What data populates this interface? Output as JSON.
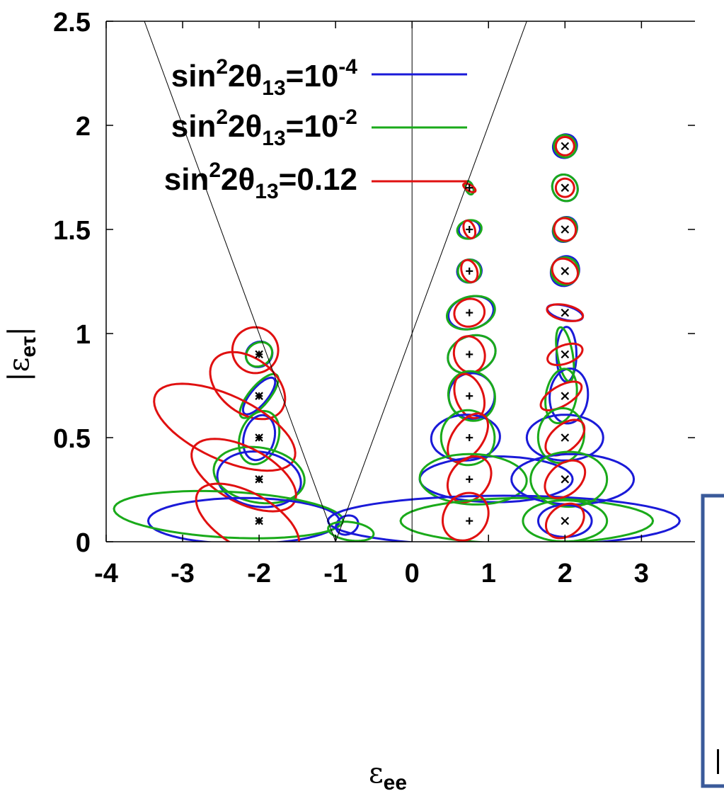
{
  "chart_data": {
    "type": "scatter",
    "xlabel": "ε",
    "xlabel_sub": "ee",
    "ylabel": "|ε",
    "ylabel_sub": "eτ",
    "ylabel_close": "|",
    "xlim": [
      -4,
      3.7
    ],
    "ylim": [
      0,
      2.5
    ],
    "x_ticks": [
      -4,
      -3,
      -2,
      -1,
      0,
      1,
      2,
      3
    ],
    "x_tick_labels": [
      "-4",
      "-3",
      "-2",
      "-1",
      "0",
      "1",
      "2",
      "3"
    ],
    "y_ticks": [
      0,
      0.5,
      1,
      1.5,
      2,
      2.5
    ],
    "y_tick_labels": [
      "0",
      "0.5",
      "1",
      "1.5",
      "2",
      "2.5"
    ],
    "legend_position": "top-left",
    "series": [
      {
        "name": "sin²2θ13=10⁻⁴",
        "legend_main": "sin",
        "legend_sup1": "2",
        "legend_mid": "2θ",
        "legend_sub": "13",
        "legend_eq": "=10",
        "legend_sup2": "-4",
        "color": "#1a1ad8"
      },
      {
        "name": "sin²2θ13=10⁻²",
        "legend_main": "sin",
        "legend_sup1": "2",
        "legend_mid": "2θ",
        "legend_sub": "13",
        "legend_eq": "=10",
        "legend_sup2": "-2",
        "color": "#1aaa1a"
      },
      {
        "name": "sin²2θ13=0.12",
        "legend_main": "sin",
        "legend_sup1": "2",
        "legend_mid": "2θ",
        "legend_sub": "13",
        "legend_eq": "=0.12",
        "legend_sup2": "",
        "color": "#e01010"
      }
    ],
    "boundary_lines": [
      {
        "x": [
          -3.5,
          -1
        ],
        "y": [
          2.5,
          0
        ]
      },
      {
        "x": [
          -1,
          1.5
        ],
        "y": [
          0,
          2.5
        ]
      },
      {
        "x": [
          0,
          0
        ],
        "y": [
          0,
          2.5
        ]
      }
    ],
    "true_points": [
      {
        "x": -2,
        "y": 0.9,
        "marker": "*"
      },
      {
        "x": -2,
        "y": 0.7,
        "marker": "*"
      },
      {
        "x": -2,
        "y": 0.5,
        "marker": "*"
      },
      {
        "x": -2,
        "y": 0.3,
        "marker": "*"
      },
      {
        "x": -2,
        "y": 0.1,
        "marker": "*"
      },
      {
        "x": 0.75,
        "y": 1.7,
        "marker": "+"
      },
      {
        "x": 0.75,
        "y": 1.5,
        "marker": "+"
      },
      {
        "x": 0.75,
        "y": 1.3,
        "marker": "+"
      },
      {
        "x": 0.75,
        "y": 1.1,
        "marker": "+"
      },
      {
        "x": 0.75,
        "y": 0.9,
        "marker": "+"
      },
      {
        "x": 0.75,
        "y": 0.7,
        "marker": "+"
      },
      {
        "x": 0.75,
        "y": 0.5,
        "marker": "+"
      },
      {
        "x": 0.75,
        "y": 0.3,
        "marker": "+"
      },
      {
        "x": 0.75,
        "y": 0.1,
        "marker": "+"
      },
      {
        "x": 2,
        "y": 1.9,
        "marker": "x"
      },
      {
        "x": 2,
        "y": 1.7,
        "marker": "x"
      },
      {
        "x": 2,
        "y": 1.5,
        "marker": "x"
      },
      {
        "x": 2,
        "y": 1.3,
        "marker": "x"
      },
      {
        "x": 2,
        "y": 1.1,
        "marker": "x"
      },
      {
        "x": 2,
        "y": 0.9,
        "marker": "x"
      },
      {
        "x": 2,
        "y": 0.7,
        "marker": "x"
      },
      {
        "x": 2,
        "y": 0.5,
        "marker": "x"
      },
      {
        "x": 2,
        "y": 0.3,
        "marker": "x"
      },
      {
        "x": 2,
        "y": 0.1,
        "marker": "x"
      }
    ],
    "contours": [
      {
        "s": 0,
        "cx": -2,
        "cy": 0.9,
        "a": 0.16,
        "b": 0.03,
        "ang": -56
      },
      {
        "s": 1,
        "cx": -2,
        "cy": 0.9,
        "a": 0.15,
        "b": 0.03,
        "ang": -56
      },
      {
        "s": 2,
        "cx": -2.05,
        "cy": 0.92,
        "a": 0.3,
        "b": 0.05,
        "ang": -48
      },
      {
        "s": 0,
        "cx": -2,
        "cy": 0.7,
        "a": 0.11,
        "b": 0.05,
        "ang": -40
      },
      {
        "s": 1,
        "cx": -2,
        "cy": 0.7,
        "a": 0.13,
        "b": 0.06,
        "ang": -40
      },
      {
        "s": 2,
        "cx": -2.15,
        "cy": 0.75,
        "a": 0.55,
        "b": 0.06,
        "ang": -37
      },
      {
        "s": 0,
        "cx": -2,
        "cy": 0.5,
        "a": 0.2,
        "b": 0.05,
        "ang": -15
      },
      {
        "s": 1,
        "cx": -2,
        "cy": 0.5,
        "a": 0.25,
        "b": 0.06,
        "ang": -20
      },
      {
        "s": 2,
        "cx": -2.45,
        "cy": 0.55,
        "a": 1.0,
        "b": 0.07,
        "ang": -25
      },
      {
        "s": 0,
        "cx": -2,
        "cy": 0.3,
        "a": 0.55,
        "b": 0.06,
        "ang": -8
      },
      {
        "s": 1,
        "cx": -2,
        "cy": 0.32,
        "a": 0.6,
        "b": 0.06,
        "ang": -10
      },
      {
        "s": 2,
        "cx": -2.2,
        "cy": 0.32,
        "a": 0.75,
        "b": 0.06,
        "ang": -28
      },
      {
        "s": 0,
        "cx": -2.2,
        "cy": 0.1,
        "a": 1.25,
        "b": 0.05,
        "ang": 0
      },
      {
        "s": 1,
        "cx": -2.4,
        "cy": 0.13,
        "a": 1.5,
        "b": 0.05,
        "ang": -3
      },
      {
        "s": 2,
        "cx": -2.15,
        "cy": 0.1,
        "a": 0.75,
        "b": 0.06,
        "ang": -30
      },
      {
        "s": 0,
        "cx": 0.75,
        "cy": 1.7,
        "a": 0.05,
        "b": 0.015,
        "ang": 20
      },
      {
        "s": 1,
        "cx": 0.75,
        "cy": 1.7,
        "a": 0.05,
        "b": 0.015,
        "ang": 20
      },
      {
        "s": 2,
        "cx": 0.75,
        "cy": 1.7,
        "a": 0.04,
        "b": 0.015,
        "ang": 60
      },
      {
        "s": 0,
        "cx": 0.75,
        "cy": 1.5,
        "a": 0.14,
        "b": 0.02,
        "ang": 12
      },
      {
        "s": 1,
        "cx": 0.75,
        "cy": 1.5,
        "a": 0.16,
        "b": 0.02,
        "ang": 12
      },
      {
        "s": 2,
        "cx": 0.75,
        "cy": 1.5,
        "a": 0.07,
        "b": 0.02,
        "ang": 20
      },
      {
        "s": 0,
        "cx": 0.75,
        "cy": 1.3,
        "a": 0.16,
        "b": 0.025,
        "ang": 15
      },
      {
        "s": 1,
        "cx": 0.75,
        "cy": 1.3,
        "a": 0.15,
        "b": 0.025,
        "ang": 15
      },
      {
        "s": 2,
        "cx": 0.75,
        "cy": 1.3,
        "a": 0.1,
        "b": 0.025,
        "ang": 20
      },
      {
        "s": 0,
        "cx": 0.77,
        "cy": 1.1,
        "a": 0.3,
        "b": 0.035,
        "ang": 15
      },
      {
        "s": 1,
        "cx": 0.77,
        "cy": 1.1,
        "a": 0.32,
        "b": 0.035,
        "ang": 15
      },
      {
        "s": 2,
        "cx": 0.75,
        "cy": 1.1,
        "a": 0.2,
        "b": 0.03,
        "ang": 20
      },
      {
        "s": 0,
        "cx": 0.78,
        "cy": 0.9,
        "a": 0.32,
        "b": 0.04,
        "ang": 20
      },
      {
        "s": 1,
        "cx": 0.78,
        "cy": 0.9,
        "a": 0.32,
        "b": 0.04,
        "ang": 20
      },
      {
        "s": 2,
        "cx": 0.75,
        "cy": 0.9,
        "a": 0.2,
        "b": 0.04,
        "ang": 15
      },
      {
        "s": 0,
        "cx": 0.78,
        "cy": 0.7,
        "a": 0.3,
        "b": 0.05,
        "ang": 25
      },
      {
        "s": 1,
        "cx": 0.78,
        "cy": 0.7,
        "a": 0.3,
        "b": 0.055,
        "ang": 25
      },
      {
        "s": 2,
        "cx": 0.75,
        "cy": 0.7,
        "a": 0.18,
        "b": 0.05,
        "ang": 20
      },
      {
        "s": 0,
        "cx": 0.7,
        "cy": 0.5,
        "a": 0.45,
        "b": 0.05,
        "ang": 3
      },
      {
        "s": 1,
        "cx": 0.73,
        "cy": 0.5,
        "a": 0.35,
        "b": 0.06,
        "ang": 8
      },
      {
        "s": 2,
        "cx": 0.73,
        "cy": 0.5,
        "a": 0.2,
        "b": 0.06,
        "ang": -35
      },
      {
        "s": 0,
        "cx": 1.1,
        "cy": 0.3,
        "a": 1.0,
        "b": 0.05,
        "ang": 0
      },
      {
        "s": 1,
        "cx": 0.8,
        "cy": 0.3,
        "a": 0.7,
        "b": 0.055,
        "ang": -2
      },
      {
        "s": 2,
        "cx": 0.75,
        "cy": 0.3,
        "a": 0.25,
        "b": 0.055,
        "ang": -40
      },
      {
        "s": 0,
        "cx": 1.2,
        "cy": 0.1,
        "a": 2.3,
        "b": 0.055,
        "ang": 0
      },
      {
        "s": 1,
        "cx": 1.5,
        "cy": 0.1,
        "a": 1.65,
        "b": 0.05,
        "ang": 0
      },
      {
        "s": 2,
        "cx": 0.7,
        "cy": 0.12,
        "a": 0.28,
        "b": 0.055,
        "ang": -38
      },
      {
        "s": 0,
        "cx": 2,
        "cy": 1.9,
        "a": 0.16,
        "b": 0.025,
        "ang": 38
      },
      {
        "s": 1,
        "cx": 2,
        "cy": 1.9,
        "a": 0.14,
        "b": 0.025,
        "ang": 38
      },
      {
        "s": 2,
        "cx": 2,
        "cy": 1.9,
        "a": 0.12,
        "b": 0.02,
        "ang": 35
      },
      {
        "s": 0,
        "cx": 2,
        "cy": 1.7,
        "a": 0.16,
        "b": 0.03,
        "ang": 35
      },
      {
        "s": 1,
        "cx": 2,
        "cy": 1.7,
        "a": 0.16,
        "b": 0.03,
        "ang": 35
      },
      {
        "s": 2,
        "cx": 2,
        "cy": 1.7,
        "a": 0.12,
        "b": 0.02,
        "ang": 15
      },
      {
        "s": 0,
        "cx": 2,
        "cy": 1.5,
        "a": 0.17,
        "b": 0.025,
        "ang": 50
      },
      {
        "s": 1,
        "cx": 2,
        "cy": 1.5,
        "a": 0.16,
        "b": 0.025,
        "ang": 50
      },
      {
        "s": 2,
        "cx": 2,
        "cy": 1.5,
        "a": 0.14,
        "b": 0.025,
        "ang": 25
      },
      {
        "s": 0,
        "cx": 2,
        "cy": 1.3,
        "a": 0.2,
        "b": 0.03,
        "ang": 60
      },
      {
        "s": 1,
        "cx": 2,
        "cy": 1.3,
        "a": 0.18,
        "b": 0.03,
        "ang": 60
      },
      {
        "s": 2,
        "cx": 2,
        "cy": 1.3,
        "a": 0.15,
        "b": 0.03,
        "ang": 50
      },
      {
        "s": 0,
        "cx": 2,
        "cy": 1.1,
        "a": 0.09,
        "b": 0.04,
        "ang": 75
      },
      {
        "s": 2,
        "cx": 2,
        "cy": 1.1,
        "a": 0.1,
        "b": 0.04,
        "ang": 78
      },
      {
        "s": 0,
        "cx": 2.02,
        "cy": 0.9,
        "a": 0.13,
        "b": 0.06,
        "ang": 0
      },
      {
        "s": 1,
        "cx": 2,
        "cy": 0.9,
        "a": 0.1,
        "b": 0.06,
        "ang": 10
      },
      {
        "s": 2,
        "cx": 2,
        "cy": 0.9,
        "a": 0.12,
        "b": 0.04,
        "ang": -70
      },
      {
        "s": 0,
        "cx": 2.05,
        "cy": 0.7,
        "a": 0.25,
        "b": 0.06,
        "ang": -5
      },
      {
        "s": 1,
        "cx": 1.95,
        "cy": 0.7,
        "a": 0.2,
        "b": 0.06,
        "ang": -10
      },
      {
        "s": 2,
        "cx": 1.95,
        "cy": 0.7,
        "a": 0.13,
        "b": 0.05,
        "ang": -60
      },
      {
        "s": 0,
        "cx": 2,
        "cy": 0.5,
        "a": 0.5,
        "b": 0.05,
        "ang": 0
      },
      {
        "s": 1,
        "cx": 1.95,
        "cy": 0.51,
        "a": 0.3,
        "b": 0.06,
        "ang": -10
      },
      {
        "s": 2,
        "cx": 2,
        "cy": 0.5,
        "a": 0.17,
        "b": 0.05,
        "ang": -50
      },
      {
        "s": 0,
        "cx": 2.1,
        "cy": 0.3,
        "a": 0.8,
        "b": 0.055,
        "ang": 0
      },
      {
        "s": 1,
        "cx": 2.05,
        "cy": 0.3,
        "a": 0.5,
        "b": 0.06,
        "ang": 0
      },
      {
        "s": 2,
        "cx": 2,
        "cy": 0.3,
        "a": 0.2,
        "b": 0.05,
        "ang": -50
      },
      {
        "s": 0,
        "cx": 2.0,
        "cy": 0.1,
        "a": 0.35,
        "b": 0.035,
        "ang": 0
      },
      {
        "s": 1,
        "cx": 2.0,
        "cy": 0.1,
        "a": 0.55,
        "b": 0.045,
        "ang": 0
      },
      {
        "s": 2,
        "cx": 2,
        "cy": 0.1,
        "a": 0.2,
        "b": 0.045,
        "ang": -55
      },
      {
        "s": 0,
        "cx": -0.85,
        "cy": 0.08,
        "a": 0.15,
        "b": 0.02,
        "ang": 25
      },
      {
        "s": 1,
        "cx": -0.8,
        "cy": 0.05,
        "a": 0.3,
        "b": 0.02,
        "ang": -8
      }
    ]
  }
}
